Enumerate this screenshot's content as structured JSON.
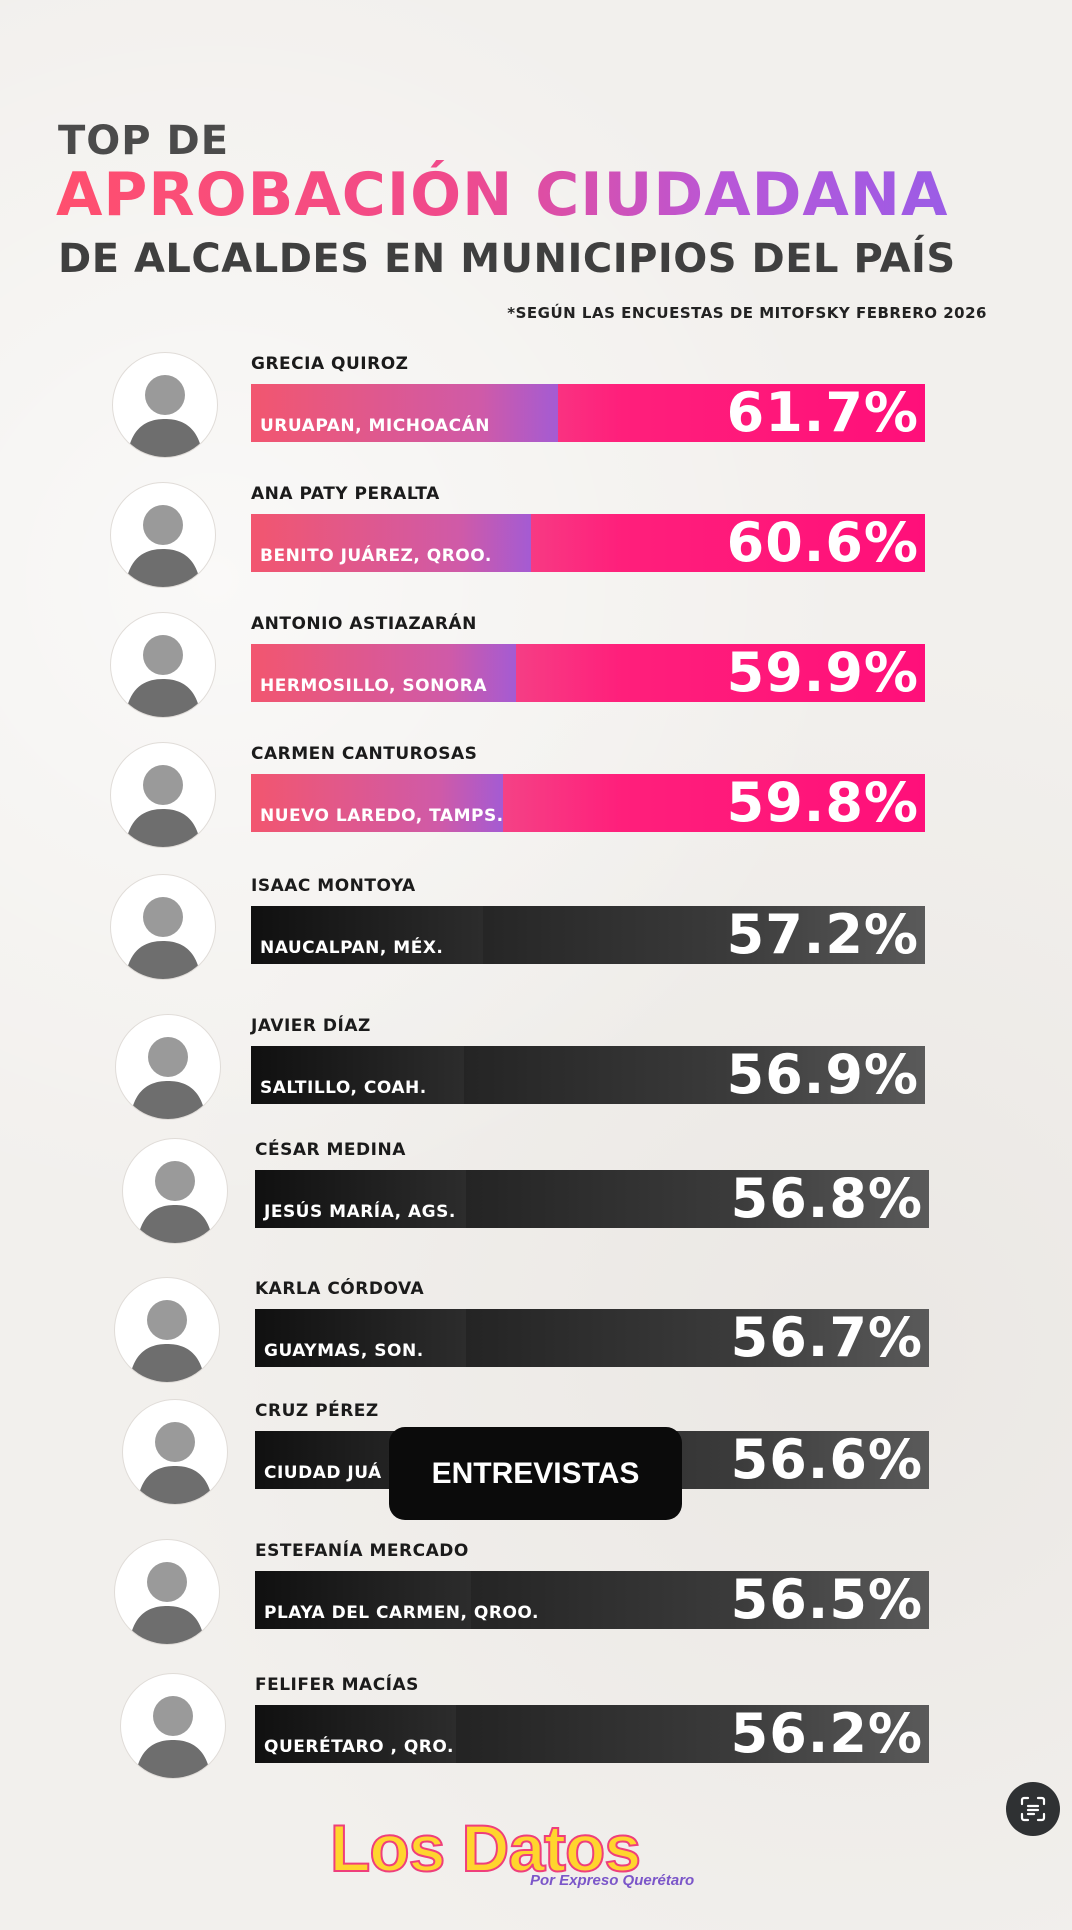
{
  "header": {
    "line1": "TOP DE",
    "line2": "APROBACIÓN CIUDADANA",
    "line3": "DE ALCALDES EN MUNICIPIOS DEL PAÍS",
    "source_note": "*SEGÚN LAS ENCUESTAS DE MITOFSKY FEBRERO 2026"
  },
  "chart_data": {
    "type": "bar",
    "title": "TOP DE APROBACIÓN CIUDADANA DE ALCALDES EN MUNICIPIOS DEL PAÍS",
    "unit": "%",
    "categories": [
      "GRECIA QUIROZ",
      "ANA PATY PERALTA",
      "ANTONIO ASTIAZARÁN",
      "CARMEN CANTUROSAS",
      "ISAAC MONTOYA",
      "JAVIER DÍAZ",
      "CÉSAR MEDINA",
      "KARLA CÓRDOVA",
      "CRUZ PÉREZ",
      "ESTEFANÍA MERCADO",
      "FELIFER MACÍAS"
    ],
    "values": [
      61.7,
      60.6,
      59.9,
      59.8,
      57.2,
      56.9,
      56.8,
      56.7,
      56.6,
      56.5,
      56.2
    ]
  },
  "rows": [
    {
      "name": "GRECIA QUIROZ",
      "location": "URUAPAN, MICHOACÁN",
      "pct_label": "61.7%",
      "style": "color"
    },
    {
      "name": "ANA PATY PERALTA",
      "location": "BENITO JUÁREZ, QROO.",
      "pct_label": "60.6%",
      "style": "color"
    },
    {
      "name": "ANTONIO ASTIAZARÁN",
      "location": "HERMOSILLO, SONORA",
      "pct_label": "59.9%",
      "style": "color"
    },
    {
      "name": "CARMEN CANTUROSAS",
      "location": "NUEVO LAREDO, TAMPS.",
      "pct_label": "59.8%",
      "style": "color"
    },
    {
      "name": "ISAAC MONTOYA",
      "location": "NAUCALPAN, MÉX.",
      "pct_label": "57.2%",
      "style": "dark"
    },
    {
      "name": "JAVIER DÍAZ",
      "location": "SALTILLO, COAH.",
      "pct_label": "56.9%",
      "style": "dark"
    },
    {
      "name": "CÉSAR MEDINA",
      "location": "JESÚS MARÍA, AGS.",
      "pct_label": "56.8%",
      "style": "dark"
    },
    {
      "name": "KARLA CÓRDOVA",
      "location": "GUAYMAS, SON.",
      "pct_label": "56.7%",
      "style": "dark"
    },
    {
      "name": "CRUZ PÉREZ",
      "location": "CIUDAD JUÁ",
      "pct_label": "56.6%",
      "style": "dark"
    },
    {
      "name": "ESTEFANÍA MERCADO",
      "location": "PLAYA DEL CARMEN, QROO.",
      "pct_label": "56.5%",
      "style": "dark"
    },
    {
      "name": "FELIFER MACÍAS",
      "location": "QUERÉTARO , QRO.",
      "pct_label": "56.2%",
      "style": "dark"
    }
  ],
  "overlay_badge": "ENTREVISTAS",
  "logo": {
    "main": "Los Datos",
    "sub": "Por Expreso Querétaro"
  },
  "icons": {
    "lens": "screen-search-icon"
  },
  "colors": {
    "accent_pink": "#ff1f7b",
    "accent_purple": "#9b5ce6",
    "dark_bar": "#1c1c1c"
  }
}
